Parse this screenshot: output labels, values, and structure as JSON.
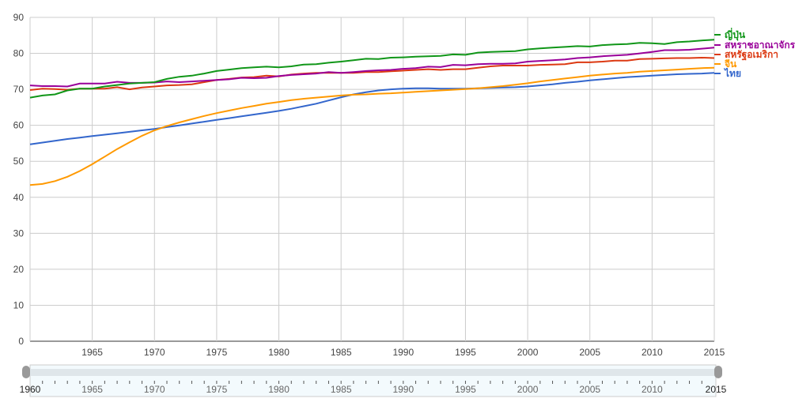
{
  "chart_data": {
    "type": "line",
    "title": "",
    "xlabel": "",
    "ylabel": "",
    "xlim": [
      1960,
      2015
    ],
    "ylim": [
      0,
      90
    ],
    "y_ticks": [
      "0",
      "10",
      "20",
      "30",
      "40",
      "50",
      "60",
      "70",
      "80",
      "90"
    ],
    "x_ticks": [
      "1965",
      "1970",
      "1975",
      "1980",
      "1985",
      "1990",
      "1995",
      "2000",
      "2005",
      "2010",
      "2015"
    ],
    "grid": true,
    "legend": "right",
    "x": [
      1960,
      1961,
      1962,
      1963,
      1964,
      1965,
      1966,
      1967,
      1968,
      1969,
      1970,
      1971,
      1972,
      1973,
      1974,
      1975,
      1976,
      1977,
      1978,
      1979,
      1980,
      1981,
      1982,
      1983,
      1984,
      1985,
      1986,
      1987,
      1988,
      1989,
      1990,
      1991,
      1992,
      1993,
      1994,
      1995,
      1996,
      1997,
      1998,
      1999,
      2000,
      2001,
      2002,
      2003,
      2004,
      2005,
      2006,
      2007,
      2008,
      2009,
      2010,
      2011,
      2012,
      2013,
      2014,
      2015
    ],
    "series": [
      {
        "name": "ญี่ปุ่น",
        "color": "#109618",
        "values": [
          67.7,
          68.3,
          68.6,
          69.7,
          70.2,
          70.2,
          70.8,
          71.2,
          71.6,
          71.8,
          72.0,
          72.9,
          73.5,
          73.8,
          74.4,
          75.1,
          75.5,
          75.9,
          76.1,
          76.3,
          76.1,
          76.4,
          76.9,
          77.0,
          77.4,
          77.7,
          78.1,
          78.5,
          78.4,
          78.8,
          78.9,
          79.1,
          79.2,
          79.3,
          79.7,
          79.6,
          80.2,
          80.4,
          80.5,
          80.6,
          81.1,
          81.4,
          81.6,
          81.8,
          82.0,
          81.9,
          82.3,
          82.5,
          82.6,
          82.9,
          82.8,
          82.6,
          83.1,
          83.3,
          83.6,
          83.8
        ]
      },
      {
        "name": "สหราชอาณาจักร",
        "color": "#990099",
        "values": [
          71.1,
          70.9,
          70.9,
          70.8,
          71.6,
          71.6,
          71.6,
          72.1,
          71.8,
          71.8,
          71.9,
          72.2,
          72.0,
          72.2,
          72.4,
          72.6,
          72.8,
          73.2,
          73.1,
          73.2,
          73.7,
          74.0,
          74.2,
          74.4,
          74.8,
          74.6,
          74.8,
          75.1,
          75.3,
          75.4,
          75.7,
          75.9,
          76.3,
          76.2,
          76.8,
          76.7,
          77.0,
          77.1,
          77.1,
          77.2,
          77.7,
          77.9,
          78.1,
          78.3,
          78.7,
          78.9,
          79.2,
          79.4,
          79.6,
          80.0,
          80.4,
          80.9,
          80.9,
          81.0,
          81.3,
          81.6
        ]
      },
      {
        "name": "สหรัฐอเมริกา",
        "color": "#dc3912",
        "values": [
          69.8,
          70.2,
          70.1,
          69.9,
          70.2,
          70.2,
          70.2,
          70.6,
          70.0,
          70.5,
          70.8,
          71.1,
          71.2,
          71.4,
          72.0,
          72.6,
          72.9,
          73.3,
          73.4,
          73.8,
          73.6,
          74.1,
          74.4,
          74.6,
          74.6,
          74.6,
          74.6,
          74.8,
          74.8,
          75.0,
          75.2,
          75.4,
          75.6,
          75.4,
          75.6,
          75.6,
          76.0,
          76.4,
          76.6,
          76.6,
          76.6,
          76.8,
          76.9,
          77.0,
          77.5,
          77.5,
          77.7,
          78.0,
          78.0,
          78.4,
          78.5,
          78.6,
          78.7,
          78.7,
          78.8,
          78.7
        ]
      },
      {
        "name": "จีน",
        "color": "#ff9900",
        "values": [
          43.4,
          43.7,
          44.5,
          45.7,
          47.3,
          49.2,
          51.3,
          53.4,
          55.3,
          57.1,
          58.6,
          59.8,
          60.8,
          61.7,
          62.6,
          63.4,
          64.1,
          64.8,
          65.4,
          66.0,
          66.5,
          67.0,
          67.4,
          67.7,
          68.0,
          68.3,
          68.5,
          68.6,
          68.8,
          68.9,
          69.1,
          69.3,
          69.5,
          69.7,
          69.9,
          70.1,
          70.3,
          70.6,
          70.9,
          71.3,
          71.7,
          72.2,
          72.6,
          73.0,
          73.4,
          73.8,
          74.1,
          74.4,
          74.6,
          74.9,
          75.1,
          75.3,
          75.5,
          75.7,
          75.9,
          76.0
        ]
      },
      {
        "name": "ไทย",
        "color": "#3366cc",
        "values": [
          54.7,
          55.2,
          55.7,
          56.2,
          56.6,
          57.0,
          57.4,
          57.8,
          58.2,
          58.6,
          59.0,
          59.5,
          60.0,
          60.5,
          61.0,
          61.5,
          62.0,
          62.5,
          63.0,
          63.5,
          64.0,
          64.6,
          65.3,
          66.0,
          66.9,
          67.8,
          68.6,
          69.2,
          69.7,
          70.0,
          70.2,
          70.3,
          70.3,
          70.2,
          70.2,
          70.2,
          70.3,
          70.4,
          70.5,
          70.6,
          70.8,
          71.1,
          71.4,
          71.8,
          72.1,
          72.5,
          72.8,
          73.1,
          73.4,
          73.6,
          73.8,
          74.0,
          74.2,
          74.3,
          74.4,
          74.6
        ]
      }
    ],
    "range_selector": {
      "start": "1960",
      "end": "2015",
      "tick_labels": [
        "1965",
        "1970",
        "1975",
        "1980",
        "1985",
        "1990",
        "1995",
        "2000",
        "2005",
        "2010"
      ]
    }
  }
}
